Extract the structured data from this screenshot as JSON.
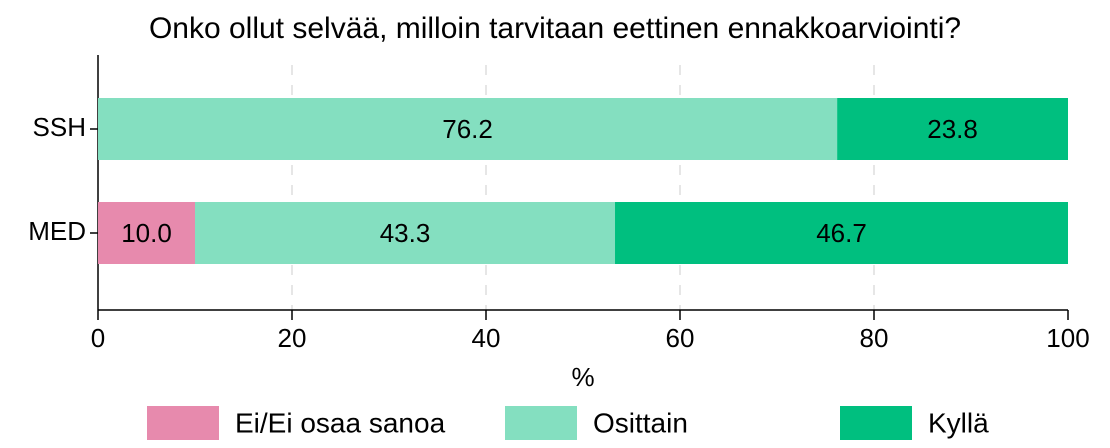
{
  "chart_data": {
    "type": "stacked_barh",
    "title": "Onko ollut selvää, milloin tarvitaan eettinen ennakkoarviointi?",
    "xlabel": "%",
    "categories": [
      "SSH",
      "MED"
    ],
    "series": [
      {
        "name": "Ei/Ei osaa sanoa",
        "color": "#e78aad",
        "values": [
          null,
          10
        ],
        "value_labels": [
          null,
          "10.0"
        ]
      },
      {
        "name": "Osittain",
        "color": "#84dfc0",
        "values": [
          76.2,
          43.3
        ]
      },
      {
        "name": "Kyllä",
        "color": "#00bf7f",
        "values": [
          23.8,
          46.7
        ]
      }
    ],
    "xlim": [
      0,
      100
    ],
    "xticks": [
      0,
      20,
      40,
      60,
      80,
      100
    ],
    "grid": true
  }
}
